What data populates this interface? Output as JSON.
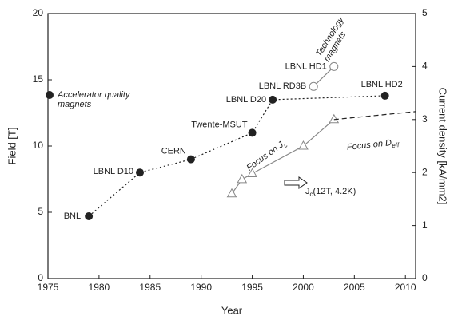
{
  "chart_data": {
    "type": "line",
    "xlabel": "Year",
    "ylabel": "Field [T]",
    "y2label": "Current density [kA/mm2]",
    "xlim": [
      1975,
      2011
    ],
    "ylim": [
      0,
      20
    ],
    "y2lim": [
      0,
      5
    ],
    "xticks": [
      1975,
      1980,
      1985,
      1990,
      1995,
      2000,
      2005,
      2010
    ],
    "yticks": [
      0,
      5,
      10,
      15,
      20
    ],
    "y2ticks": [
      0,
      1,
      2,
      3,
      4,
      5
    ],
    "series": [
      {
        "name": "Accelerator quality magnets",
        "color": "#222222",
        "marker": "filled-circle",
        "line": "dotted",
        "labels": [
          "BNL",
          "LBNL D10",
          "CERN",
          "Twente-MSUT",
          "LBNL D20",
          "LBNL HD2"
        ],
        "x": [
          1979,
          1984,
          1989,
          1995,
          1997,
          2008
        ],
        "values": [
          4.7,
          8,
          9,
          11,
          13.5,
          13.8
        ]
      },
      {
        "name": "Technology magnets",
        "color": "#888888",
        "marker": "open-circle",
        "line": "solid",
        "labels": [
          "LBNL RD3B",
          "LBNL HD1"
        ],
        "x": [
          2001,
          2003
        ],
        "values": [
          14.5,
          16
        ]
      },
      {
        "name": "Focus on J",
        "name_sub": "c",
        "color": "#888888",
        "marker": "open-triangle",
        "line": "solid",
        "axis": "y2",
        "x": [
          1993,
          1994,
          1995,
          2000,
          2003
        ],
        "values": [
          1.6,
          1.87,
          1.98,
          2.5,
          3.0
        ]
      },
      {
        "name": "Focus on D",
        "name_sub": "eff",
        "color": "#222222",
        "marker": "none",
        "line": "dashed",
        "axis": "y2",
        "x": [
          2003,
          2011
        ],
        "values": [
          3.0,
          3.15
        ]
      }
    ],
    "annotation": {
      "text": "J",
      "sub": "c",
      "rest": "(12T, 4.2K)"
    }
  }
}
